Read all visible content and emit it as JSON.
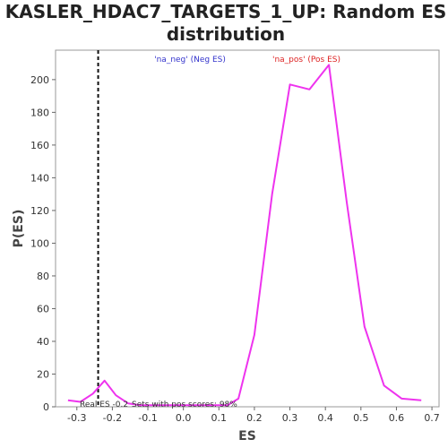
{
  "chart_data": {
    "type": "line",
    "title_line1": "KASLER_HDAC7_TARGETS_1_UP: Random ES",
    "title_line2": "distribution",
    "xlabel": "ES",
    "ylabel": "P(ES)",
    "xlim": [
      -0.36,
      0.72
    ],
    "ylim": [
      0,
      218
    ],
    "xticks": [
      -0.3,
      -0.2,
      -0.1,
      0.0,
      0.1,
      0.2,
      0.3,
      0.4,
      0.5,
      0.6,
      0.7
    ],
    "yticks": [
      0,
      20,
      40,
      60,
      80,
      100,
      120,
      140,
      160,
      180,
      200
    ],
    "legend": [
      {
        "text": "'na_neg' (Neg ES)",
        "color": "#3333cc"
      },
      {
        "text": "'na_pos' (Pos ES)",
        "color": "#dd2222"
      }
    ],
    "real_es": -0.24,
    "real_es_label": "Real ES -0.2",
    "pos_scores_label": "Sets with pos scores: 98%",
    "series": [
      {
        "color": "#ee33ee",
        "x": [
          -0.325,
          -0.29,
          -0.255,
          -0.222,
          -0.19,
          -0.155,
          -0.12,
          -0.085,
          -0.05,
          -0.015,
          0.02,
          0.055,
          0.09,
          0.125,
          0.155,
          0.2,
          0.25,
          0.3,
          0.355,
          0.41,
          0.46,
          0.51,
          0.565,
          0.615,
          0.67
        ],
        "y": [
          4,
          3,
          8,
          16,
          7,
          2,
          1,
          1,
          1,
          1,
          1,
          1,
          1,
          1,
          5,
          44,
          130,
          197,
          194,
          209,
          125,
          49,
          13,
          5,
          4
        ]
      }
    ]
  }
}
